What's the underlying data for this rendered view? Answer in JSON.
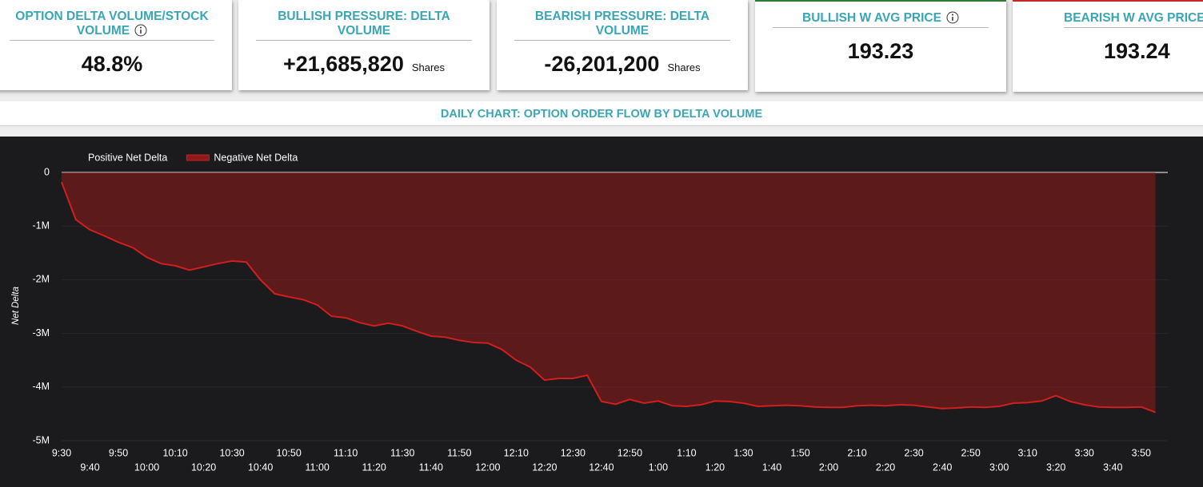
{
  "cards": [
    {
      "title": "OPTION DELTA VOLUME/STOCK VOLUME",
      "value": "48.8%"
    },
    {
      "title": "BULLISH PRESSURE: DELTA VOLUME",
      "value": "+21,685,820",
      "unit": "Shares"
    },
    {
      "title": "BEARISH PRESSURE: DELTA VOLUME",
      "value": "-26,201,200",
      "unit": "Shares"
    },
    {
      "title": "BULLISH W AVG PRICE",
      "value": "193.23"
    },
    {
      "title": "BEARISH W AVG PRICE",
      "value": "193.24"
    }
  ],
  "chart_data": {
    "type": "area",
    "title": "DAILY CHART: OPTION ORDER FLOW BY DELTA VOLUME",
    "ylabel": "Net Delta",
    "x": [
      "9:30",
      "9:35",
      "9:40",
      "9:45",
      "9:50",
      "9:55",
      "10:00",
      "10:05",
      "10:10",
      "10:15",
      "10:20",
      "10:25",
      "10:30",
      "10:35",
      "10:40",
      "10:45",
      "10:50",
      "10:55",
      "11:00",
      "11:05",
      "11:10",
      "11:15",
      "11:20",
      "11:25",
      "11:30",
      "11:35",
      "11:40",
      "11:45",
      "11:50",
      "11:55",
      "12:00",
      "12:05",
      "12:10",
      "12:15",
      "12:20",
      "12:25",
      "12:30",
      "12:35",
      "12:40",
      "12:45",
      "12:50",
      "12:55",
      "1:00",
      "1:05",
      "1:10",
      "1:15",
      "1:20",
      "1:25",
      "1:30",
      "1:35",
      "1:40",
      "1:45",
      "1:50",
      "1:55",
      "2:00",
      "2:05",
      "2:10",
      "2:15",
      "2:20",
      "2:25",
      "2:30",
      "2:35",
      "2:40",
      "2:45",
      "2:50",
      "2:55",
      "3:00",
      "3:05",
      "3:10",
      "3:15",
      "3:20",
      "3:25",
      "3:30",
      "3:35",
      "3:40",
      "3:45",
      "3:50",
      "3:55"
    ],
    "series": [
      {
        "name": "Positive Net Delta",
        "color": "#2e7d32",
        "values": [
          null,
          null,
          null,
          null,
          null,
          null,
          null,
          null,
          null,
          null,
          null,
          null,
          null,
          null,
          null,
          null,
          null,
          null,
          null,
          null,
          null,
          null,
          null,
          null,
          null,
          null,
          null,
          null,
          null,
          null,
          null,
          null,
          null,
          null,
          null,
          null,
          null,
          null,
          null,
          null,
          null,
          null,
          null,
          null,
          null,
          null,
          null,
          null,
          null,
          null,
          null,
          null,
          null,
          null,
          null,
          null,
          null,
          null,
          null,
          null,
          null,
          null,
          null,
          null,
          null,
          null,
          null,
          null,
          null,
          null,
          null,
          null,
          null,
          null,
          null,
          null,
          null,
          null
        ]
      },
      {
        "name": "Negative Net Delta",
        "color": "#8b1a1a",
        "values": [
          -180000,
          -880000,
          -1070000,
          -1180000,
          -1300000,
          -1400000,
          -1580000,
          -1700000,
          -1740000,
          -1820000,
          -1760000,
          -1700000,
          -1650000,
          -1670000,
          -2000000,
          -2260000,
          -2320000,
          -2370000,
          -2470000,
          -2680000,
          -2710000,
          -2800000,
          -2860000,
          -2810000,
          -2860000,
          -2960000,
          -3050000,
          -3070000,
          -3130000,
          -3170000,
          -3180000,
          -3300000,
          -3500000,
          -3630000,
          -3870000,
          -3840000,
          -3840000,
          -3780000,
          -4270000,
          -4320000,
          -4230000,
          -4300000,
          -4260000,
          -4350000,
          -4360000,
          -4330000,
          -4260000,
          -4270000,
          -4300000,
          -4360000,
          -4350000,
          -4340000,
          -4350000,
          -4370000,
          -4380000,
          -4380000,
          -4350000,
          -4340000,
          -4350000,
          -4330000,
          -4340000,
          -4370000,
          -4400000,
          -4390000,
          -4370000,
          -4380000,
          -4360000,
          -4300000,
          -4290000,
          -4260000,
          -4160000,
          -4270000,
          -4330000,
          -4370000,
          -4380000,
          -4380000,
          -4370000,
          -4470000
        ]
      }
    ],
    "xticks": [
      "9:30",
      "9:40",
      "9:50",
      "10:00",
      "10:10",
      "10:20",
      "10:30",
      "10:40",
      "10:50",
      "11:00",
      "11:10",
      "11:20",
      "11:30",
      "11:40",
      "11:50",
      "12:00",
      "12:10",
      "12:20",
      "12:30",
      "12:40",
      "12:50",
      "1:00",
      "1:10",
      "1:20",
      "1:30",
      "1:40",
      "1:50",
      "2:00",
      "2:10",
      "2:20",
      "2:30",
      "2:40",
      "2:50",
      "3:00",
      "3:10",
      "3:20",
      "3:30",
      "3:40",
      "3:50"
    ],
    "ylim": [
      -5000000,
      0
    ],
    "yticks": [
      0,
      {
        "value": -1000000,
        "label": "-1M"
      },
      {
        "value": -2000000,
        "label": "-2M"
      },
      {
        "value": -3000000,
        "label": "-3M"
      },
      {
        "value": -4000000,
        "label": "-4M"
      },
      {
        "value": -5000000,
        "label": "-5M"
      }
    ],
    "grid": true
  }
}
